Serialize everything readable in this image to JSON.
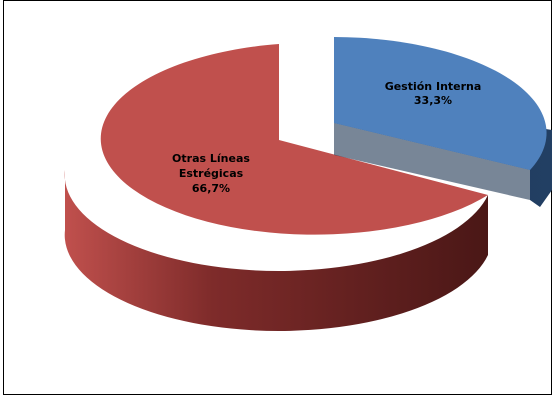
{
  "chart_data": {
    "type": "pie",
    "style": "3d-exploded",
    "title": "",
    "slices": [
      {
        "label_lines": [
          "Gestión Interna"
        ],
        "percent_label": "33,3%",
        "value": 33.3,
        "color": "#4F81BD",
        "dark": "#1F3552",
        "exploded": true
      },
      {
        "label_lines": [
          "Otras Líneas",
          "Estrégicas"
        ],
        "percent_label": "66,7%",
        "value": 66.7,
        "color": "#C0504D",
        "dark": "#4A1716",
        "exploded": false
      }
    ]
  }
}
